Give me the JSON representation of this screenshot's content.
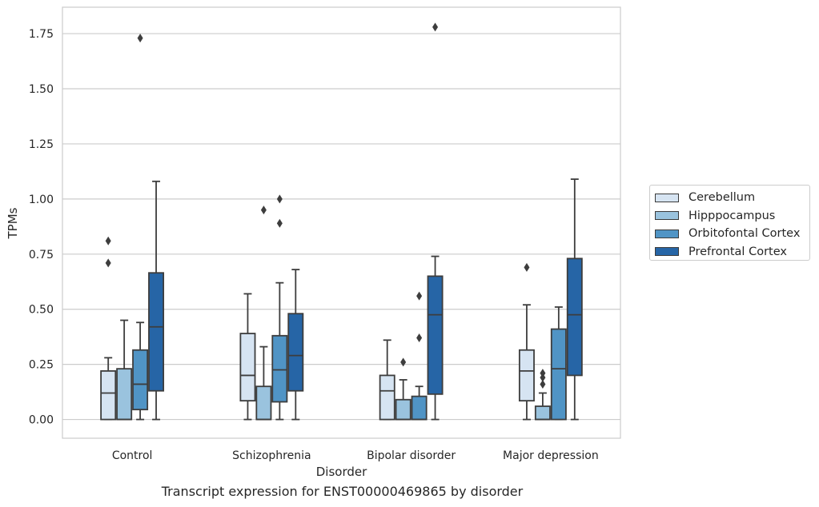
{
  "chart_data": {
    "type": "box",
    "caption": "Transcript expression for ENST00000469865 by disorder",
    "xlabel": "Disorder",
    "ylabel": "TPMs",
    "ylim": [
      -0.085,
      1.87
    ],
    "yticks": [
      "0.00",
      "0.25",
      "0.50",
      "0.75",
      "1.00",
      "1.25",
      "1.50",
      "1.75"
    ],
    "grid": true,
    "legend_position": "center-right",
    "categories": [
      "Control",
      "Schizophrenia",
      "Bipolar disorder",
      "Major depression"
    ],
    "series": [
      {
        "name": "Cerebellum",
        "color": "#d6e4f2",
        "boxes": [
          {
            "whislo": 0.0,
            "q1": 0.0,
            "med": 0.12,
            "q3": 0.22,
            "whishi": 0.28,
            "fliers": [
              0.71,
              0.81
            ]
          },
          {
            "whislo": 0.0,
            "q1": 0.085,
            "med": 0.2,
            "q3": 0.39,
            "whishi": 0.57,
            "fliers": []
          },
          {
            "whislo": 0.0,
            "q1": 0.0,
            "med": 0.13,
            "q3": 0.2,
            "whishi": 0.36,
            "fliers": []
          },
          {
            "whislo": 0.0,
            "q1": 0.085,
            "med": 0.22,
            "q3": 0.315,
            "whishi": 0.52,
            "fliers": [
              0.69
            ]
          }
        ]
      },
      {
        "name": "Hipppocampus",
        "color": "#9ac3de",
        "boxes": [
          {
            "whislo": 0.0,
            "q1": 0.0,
            "med": 0.0,
            "q3": 0.23,
            "whishi": 0.45,
            "fliers": []
          },
          {
            "whislo": 0.0,
            "q1": 0.0,
            "med": 0.0,
            "q3": 0.15,
            "whishi": 0.33,
            "fliers": [
              0.95
            ]
          },
          {
            "whislo": 0.0,
            "q1": 0.0,
            "med": 0.0,
            "q3": 0.09,
            "whishi": 0.18,
            "fliers": [
              0.26
            ]
          },
          {
            "whislo": 0.0,
            "q1": 0.0,
            "med": 0.0,
            "q3": 0.06,
            "whishi": 0.12,
            "fliers": [
              0.16,
              0.19,
              0.21
            ]
          }
        ]
      },
      {
        "name": "Orbitofontal Cortex",
        "color": "#5094c5",
        "boxes": [
          {
            "whislo": 0.0,
            "q1": 0.045,
            "med": 0.16,
            "q3": 0.315,
            "whishi": 0.44,
            "fliers": [
              1.73
            ]
          },
          {
            "whislo": 0.0,
            "q1": 0.08,
            "med": 0.225,
            "q3": 0.38,
            "whishi": 0.62,
            "fliers": [
              0.89,
              1.0
            ]
          },
          {
            "whislo": 0.0,
            "q1": 0.0,
            "med": 0.0,
            "q3": 0.105,
            "whishi": 0.15,
            "fliers": [
              0.37,
              0.56
            ]
          },
          {
            "whislo": 0.0,
            "q1": 0.0,
            "med": 0.23,
            "q3": 0.41,
            "whishi": 0.51,
            "fliers": []
          }
        ]
      },
      {
        "name": "Prefrontal Cortex",
        "color": "#2665a6",
        "boxes": [
          {
            "whislo": 0.0,
            "q1": 0.13,
            "med": 0.42,
            "q3": 0.665,
            "whishi": 1.08,
            "fliers": []
          },
          {
            "whislo": 0.0,
            "q1": 0.13,
            "med": 0.29,
            "q3": 0.48,
            "whishi": 0.68,
            "fliers": []
          },
          {
            "whislo": 0.0,
            "q1": 0.115,
            "med": 0.475,
            "q3": 0.65,
            "whishi": 0.74,
            "fliers": [
              1.78
            ]
          },
          {
            "whislo": 0.0,
            "q1": 0.2,
            "med": 0.475,
            "q3": 0.73,
            "whishi": 1.09,
            "fliers": []
          }
        ]
      }
    ]
  }
}
